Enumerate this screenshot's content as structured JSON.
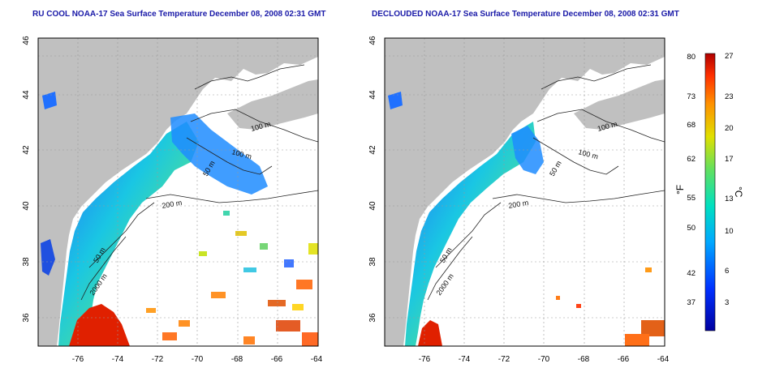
{
  "panels": [
    {
      "title": "RU COOL NOAA-17 Sea Surface Temperature December 08, 2008 02:31 GMT",
      "contour_labels": [
        "100 m",
        "100 m",
        "50 m",
        "200 m",
        "50 m",
        "2000 m"
      ]
    },
    {
      "title": "DECLOUDED NOAA-17 Sea Surface Temperature December 08, 2008 02:31 GMT",
      "contour_labels": [
        "100 m",
        "100 m",
        "50 m",
        "200 m",
        "50 m",
        "2000 m"
      ]
    }
  ],
  "axes": {
    "x_ticks": [
      "-76",
      "-74",
      "-72",
      "-70",
      "-68",
      "-66",
      "-64"
    ],
    "y_ticks": [
      "46",
      "44",
      "42",
      "40",
      "38",
      "36"
    ]
  },
  "colorbar": {
    "f_label": "°F",
    "c_label": "°C",
    "f_ticks": [
      "80",
      "73",
      "68",
      "62",
      "55",
      "50",
      "42",
      "37"
    ],
    "c_ticks": [
      "27",
      "23",
      "20",
      "17",
      "13",
      "10",
      "6",
      "3"
    ],
    "colors": [
      "#d00000",
      "#ff7a00",
      "#ffd000",
      "#9ee000",
      "#30d8a0",
      "#00b0f0",
      "#1060ff",
      "#0000b0"
    ]
  },
  "colors": {
    "land": "#c0c0c0",
    "ocean": "#ffffff",
    "title": "#1a1aa8"
  }
}
